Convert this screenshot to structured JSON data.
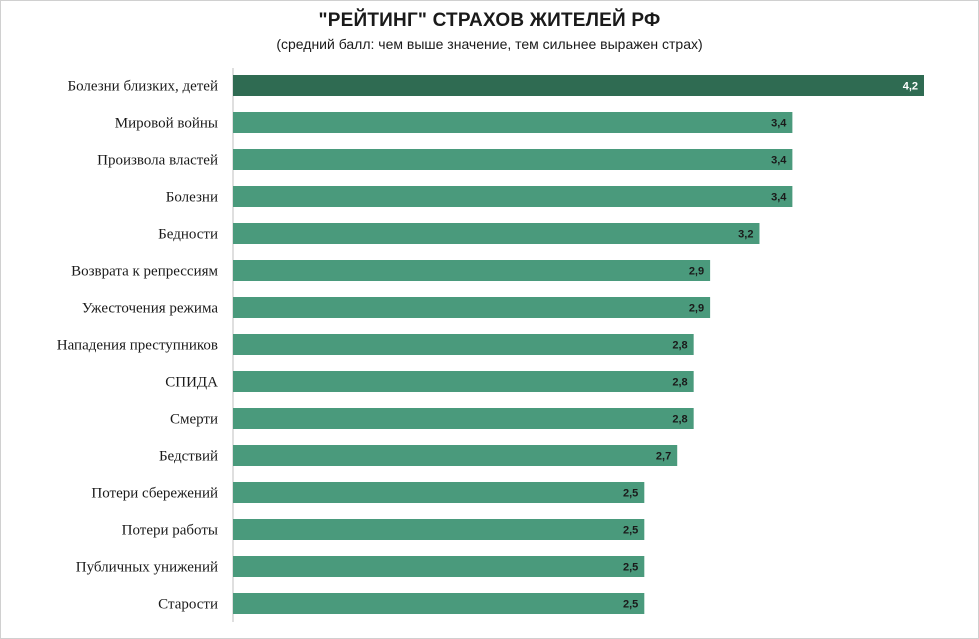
{
  "chart_data": {
    "type": "bar",
    "orientation": "horizontal",
    "title": "\"РЕЙТИНГ\" СТРАХОВ ЖИТЕЛЕЙ РФ",
    "subtitle": "(средний балл: чем выше значение, тем сильнее выражен страх)",
    "categories": [
      "Болезни близких, детей",
      "Мировой войны",
      "Произвола властей",
      "Болезни",
      "Бедности",
      "Возврата к репрессиям",
      "Ужесточения режима",
      "Нападения преступников",
      "СПИДА",
      "Смерти",
      "Бедствий",
      "Потери сбережений",
      "Потери работы",
      "Публичных унижений",
      "Старости"
    ],
    "values": [
      4.2,
      3.4,
      3.4,
      3.4,
      3.2,
      2.9,
      2.9,
      2.8,
      2.8,
      2.8,
      2.7,
      2.5,
      2.5,
      2.5,
      2.5
    ],
    "value_labels": [
      "4,2",
      "3,4",
      "3,4",
      "3,4",
      "3,2",
      "2,9",
      "2,9",
      "2,8",
      "2,8",
      "2,8",
      "2,7",
      "2,5",
      "2,5",
      "2,5",
      "2,5"
    ],
    "xlim": [
      0,
      4.2
    ],
    "grid": false,
    "legend": "none",
    "colors": {
      "highlight": "#2f6b52",
      "bar": "#4a9a7c",
      "highlight_label": "#ffffff",
      "bar_label": "#1a1a1a",
      "axis": "#bfbfbf"
    },
    "highlight_index": 0
  }
}
